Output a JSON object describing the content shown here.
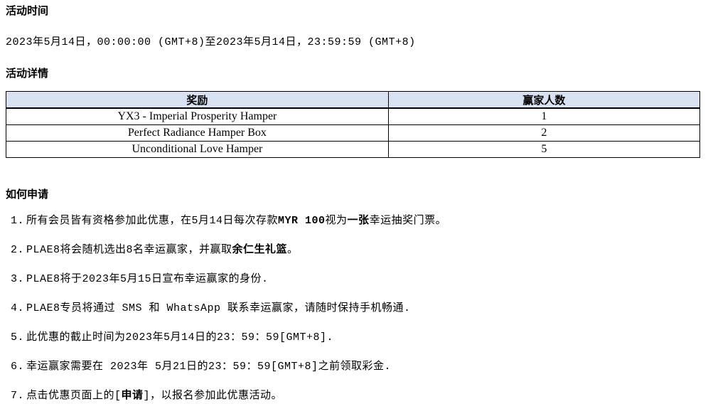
{
  "sections": {
    "activity_time_title": "活动时间",
    "activity_period": "2023年5月14日，00:00:00 (GMT+8)至2023年5月14日，23:59:59 (GMT+8)",
    "activity_details_title": "活动详情",
    "how_to_apply_title": "如何申请"
  },
  "prize_table": {
    "headers": [
      "奖励",
      "赢家人数"
    ],
    "rows": [
      [
        "YX3 - Imperial Prosperity Hamper",
        "1"
      ],
      [
        "Perfect Radiance Hamper Box",
        "2"
      ],
      [
        "Unconditional Love Hamper",
        "5"
      ]
    ]
  },
  "how_to_apply": {
    "items": [
      {
        "num": "1.",
        "segments": [
          {
            "text": "所有会员皆有资格参加此优惠，在5月14日每次存款",
            "bold": false
          },
          {
            "text": "MYR 100",
            "bold": true
          },
          {
            "text": "视为",
            "bold": false
          },
          {
            "text": "一张",
            "bold": true
          },
          {
            "text": "幸运抽奖门票。",
            "bold": false
          }
        ]
      },
      {
        "num": "2.",
        "segments": [
          {
            "text": "PLAE8将会随机选出8名幸运赢家，并赢取",
            "bold": false
          },
          {
            "text": "余仁生礼篮",
            "bold": true
          },
          {
            "text": "。",
            "bold": false
          }
        ]
      },
      {
        "num": "3.",
        "segments": [
          {
            "text": "PLAE8将于2023年5月15日宣布幸运赢家的身份.",
            "bold": false
          }
        ]
      },
      {
        "num": "4.",
        "segments": [
          {
            "text": "PLAE8专员将通过 SMS 和 WhatsApp 联系幸运赢家，请随时保持手机畅通.",
            "bold": false
          }
        ]
      },
      {
        "num": "5.",
        "segments": [
          {
            "text": "此优惠的截止时间为2023年5月14日的23：59：59[GMT+8].",
            "bold": false
          }
        ]
      },
      {
        "num": "6.",
        "segments": [
          {
            "text": "幸运赢家需要在 2023年 5月21日的23：59：59[GMT+8]之前领取彩金.",
            "bold": false
          }
        ]
      },
      {
        "num": "7.",
        "segments": [
          {
            "text": "点击优惠页面上的[",
            "bold": false
          },
          {
            "text": "申请",
            "bold": true
          },
          {
            "text": "]，以报名参加此优惠活动。",
            "bold": false
          }
        ]
      }
    ]
  },
  "colors": {
    "table_header_bg": "#d9e2f3",
    "table_border": "#000000",
    "text": "#000000"
  }
}
